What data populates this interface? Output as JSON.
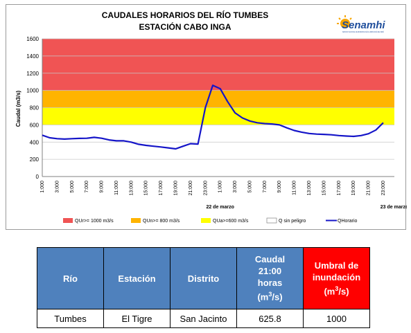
{
  "chart_data": {
    "type": "line",
    "title": [
      "CAUDALES HORARIOS DEL RÍO TUMBES",
      "ESTACIÓN CABO INGA"
    ],
    "ylabel": "Caudal (m3/s)",
    "xlabel": "",
    "ylim": [
      0,
      1600
    ],
    "yticks": [
      "0",
      "200",
      "400",
      "600",
      "800",
      "1000",
      "1200",
      "1400",
      "1600"
    ],
    "xticks": [
      "1:000",
      "3:000",
      "5:000",
      "7:000",
      "9:000",
      "11:000",
      "13:000",
      "15:000",
      "17:000",
      "19:000",
      "21:000",
      "23:000",
      "1:000",
      "3:000",
      "5:000",
      "7:000",
      "9:000",
      "11:000",
      "13:000",
      "15:000",
      "17:000",
      "19:000",
      "21:000",
      "23:000"
    ],
    "date_labels": [
      {
        "text": "22 de marzo",
        "at_hour": 24
      },
      {
        "text": "23 de marzo",
        "at_hour": 47.5
      }
    ],
    "x_hour_range": [
      0,
      46
    ],
    "grid": true,
    "legend_position": "bottom",
    "bands": [
      {
        "name": "QUr>= 1000 m3/s",
        "from": 1000,
        "to": 1600,
        "color": "#f05454"
      },
      {
        "name": "QUn>= 800 m3/s",
        "from": 800,
        "to": 1000,
        "color": "#ffb400"
      },
      {
        "name": "QUa>=600 m3/s",
        "from": 600,
        "to": 800,
        "color": "#ffff00"
      },
      {
        "name": "Q sin peligro",
        "from": 0,
        "to": 600,
        "color": "#ffffff"
      }
    ],
    "series": [
      {
        "name": "QHorario",
        "color": "#1414c8",
        "x": [
          0,
          1,
          2,
          3,
          4,
          5,
          6,
          7,
          8,
          9,
          10,
          11,
          12,
          13,
          14,
          15,
          16,
          17,
          18,
          19,
          20,
          21,
          22,
          23,
          24,
          25,
          26,
          27,
          28,
          29,
          30,
          31,
          32,
          33,
          34,
          35,
          36,
          37,
          38,
          39,
          40,
          41,
          42,
          43,
          44,
          45,
          46
        ],
        "values": [
          480,
          450,
          440,
          435,
          440,
          443,
          445,
          455,
          445,
          425,
          415,
          415,
          400,
          375,
          362,
          352,
          343,
          333,
          322,
          352,
          382,
          377,
          800,
          1060,
          1020,
          870,
          740,
          680,
          645,
          625,
          615,
          610,
          600,
          565,
          535,
          515,
          500,
          493,
          490,
          485,
          476,
          470,
          466,
          476,
          497,
          540,
          625
        ]
      }
    ]
  },
  "logo": {
    "text": "Senamhi",
    "subtext": "SERVICIO NACIONAL DE METEOROLOGÍA E HIDROLOGÍA DEL PERÚ"
  },
  "table": {
    "headers": [
      "Río",
      "Estación",
      "Distrito"
    ],
    "caudal_header": [
      "Caudal",
      "21:00",
      "horas",
      "(m",
      "3",
      "/s)"
    ],
    "umbral_header": [
      "Umbral de",
      "inundación",
      "(m",
      "3",
      "/s)"
    ],
    "row": [
      "Tumbes",
      "El Tigre",
      "San Jacinto",
      "625.8",
      "1000"
    ],
    "colors": {
      "header": "#4f81bd",
      "alert": "#ff0000"
    }
  }
}
